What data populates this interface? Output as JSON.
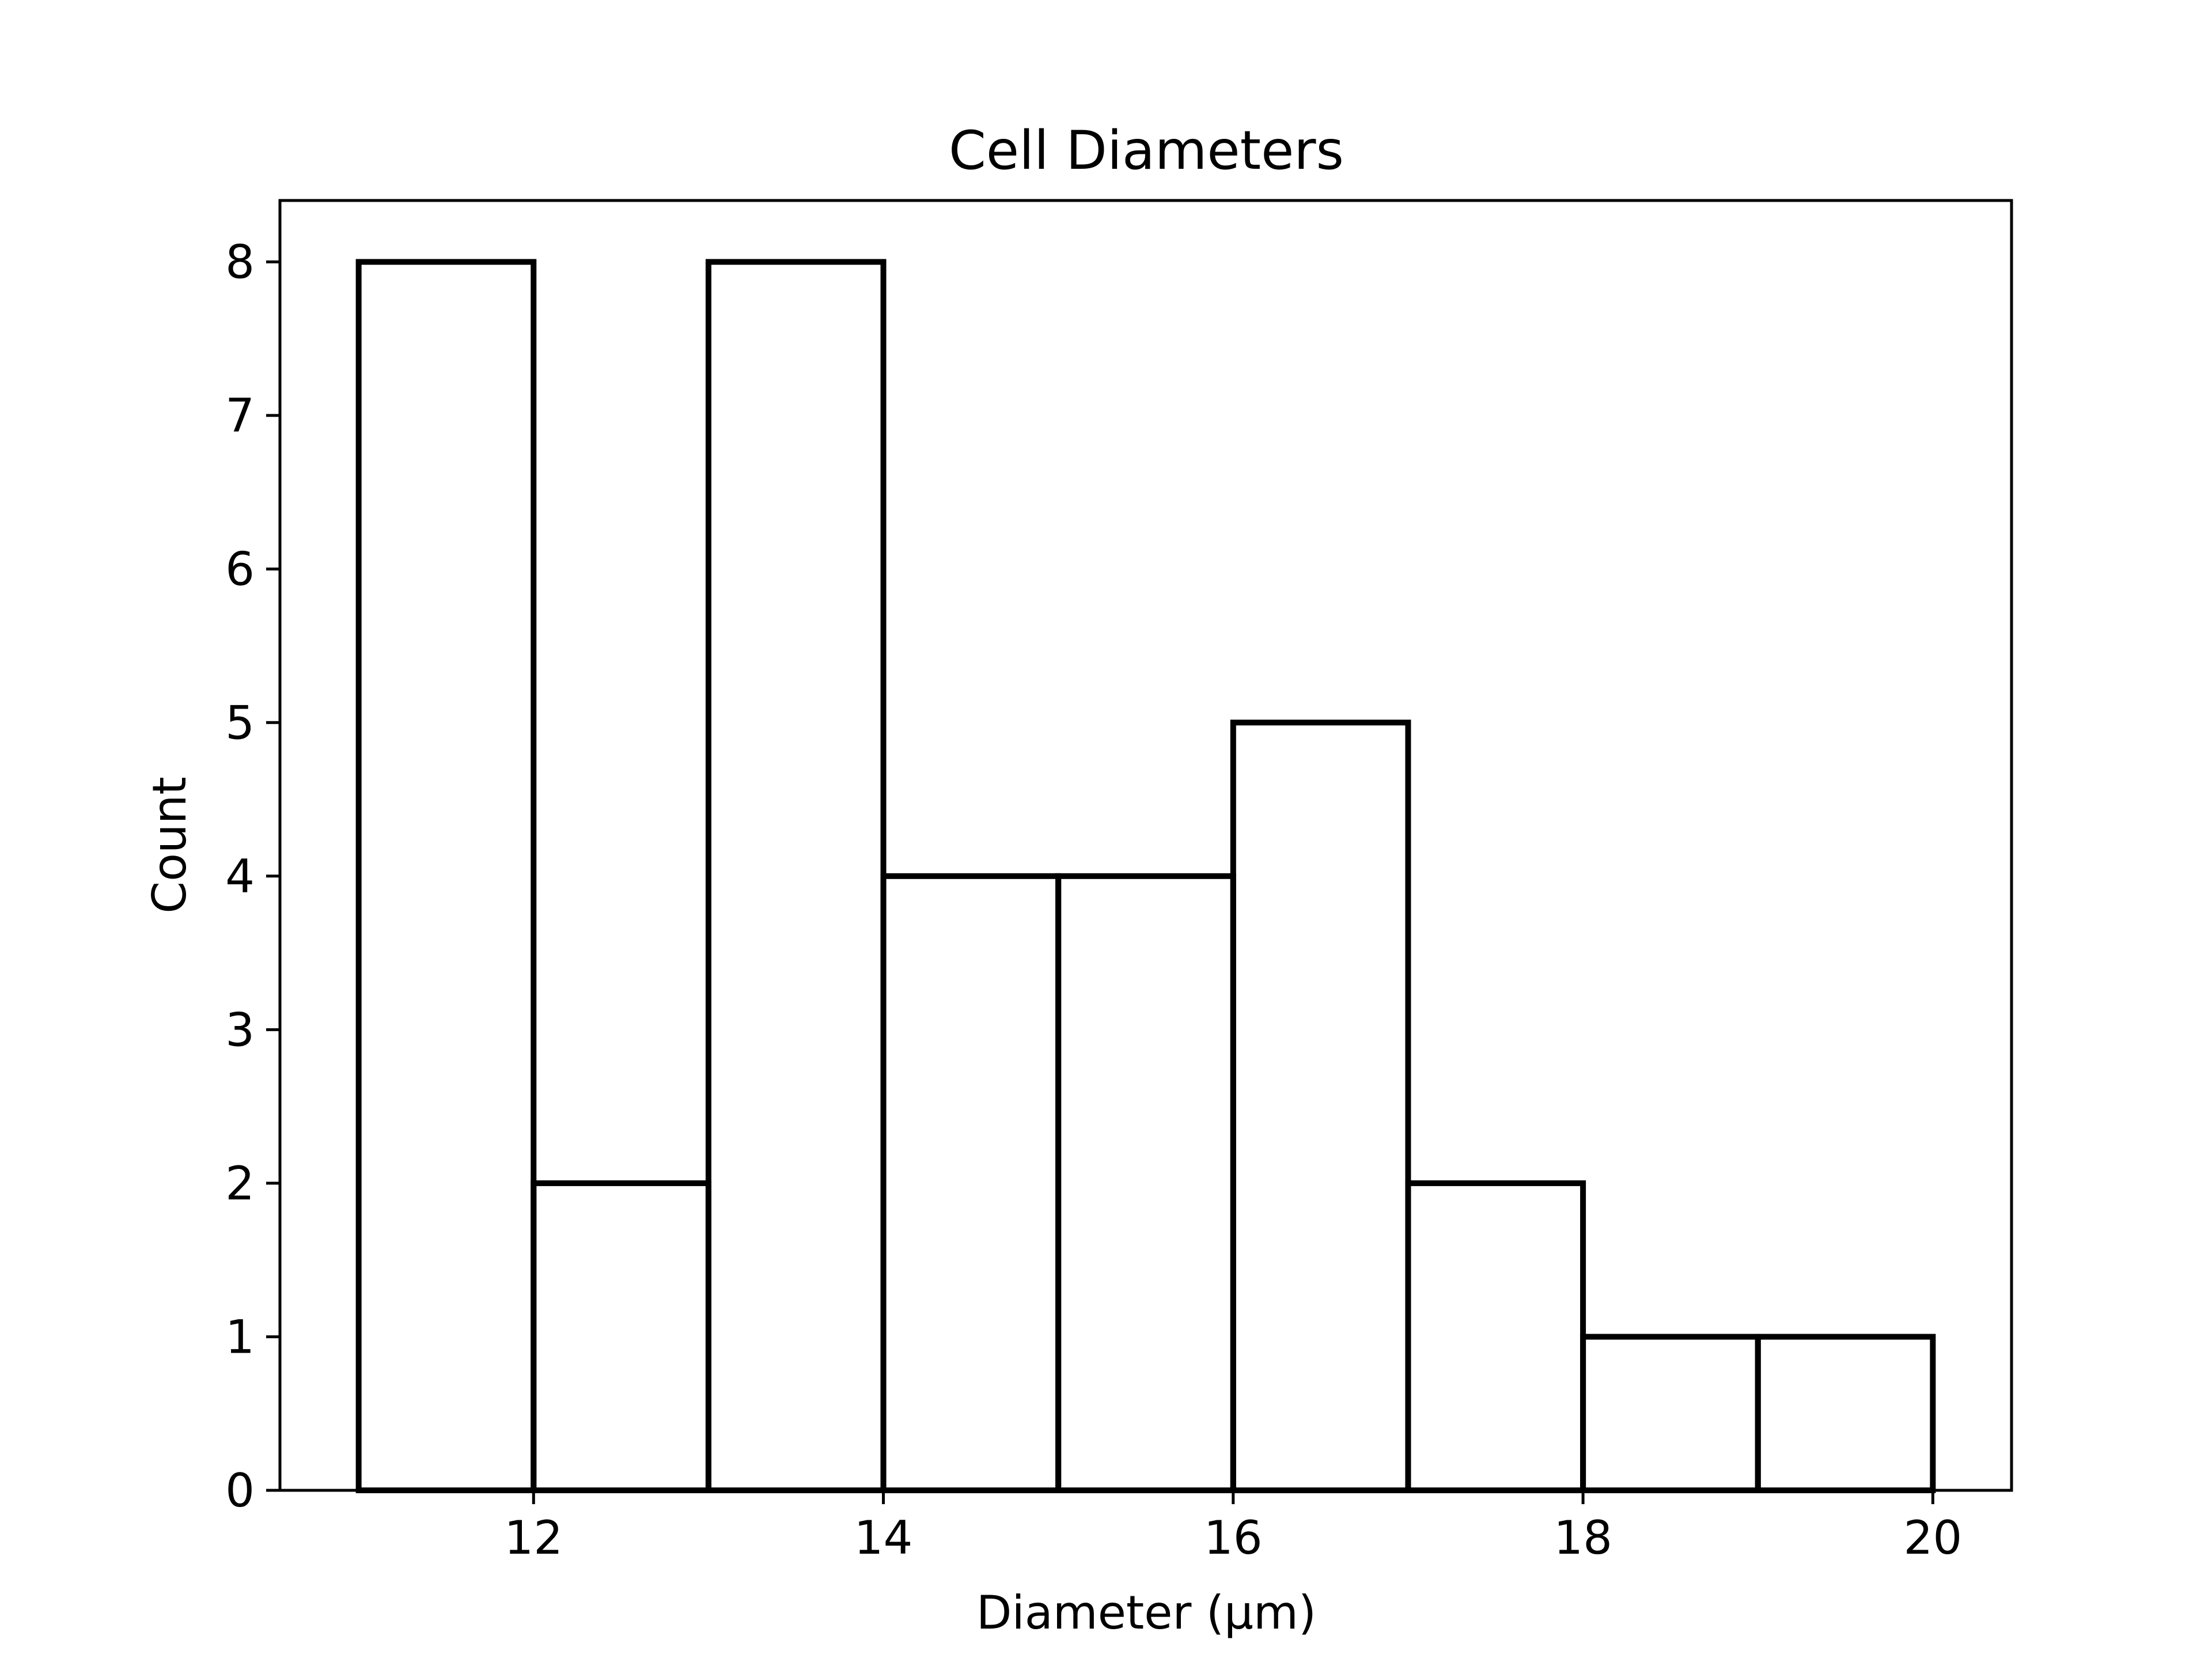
{
  "chart_data": {
    "type": "bar",
    "subtype": "histogram",
    "title": "Cell Diameters",
    "xlabel": "Diameter (μm)",
    "ylabel": "Count",
    "bins": [
      {
        "x0": 11,
        "x1": 12,
        "count": 8
      },
      {
        "x0": 12,
        "x1": 13,
        "count": 2
      },
      {
        "x0": 13,
        "x1": 14,
        "count": 8
      },
      {
        "x0": 14,
        "x1": 15,
        "count": 4
      },
      {
        "x0": 15,
        "x1": 16,
        "count": 4
      },
      {
        "x0": 16,
        "x1": 17,
        "count": 5
      },
      {
        "x0": 17,
        "x1": 18,
        "count": 2
      },
      {
        "x0": 18,
        "x1": 19,
        "count": 1
      },
      {
        "x0": 19,
        "x1": 20,
        "count": 1
      }
    ],
    "xlim": [
      10.55,
      20.45
    ],
    "ylim": [
      0,
      8.4
    ],
    "xticks": [
      12,
      14,
      16,
      18,
      20
    ],
    "yticks": [
      0,
      1,
      2,
      3,
      4,
      5,
      6,
      7,
      8
    ],
    "grid": false,
    "legend": null,
    "colors": {
      "bar_fill": "none",
      "bar_edge": "#000000",
      "background": "#ffffff"
    }
  }
}
